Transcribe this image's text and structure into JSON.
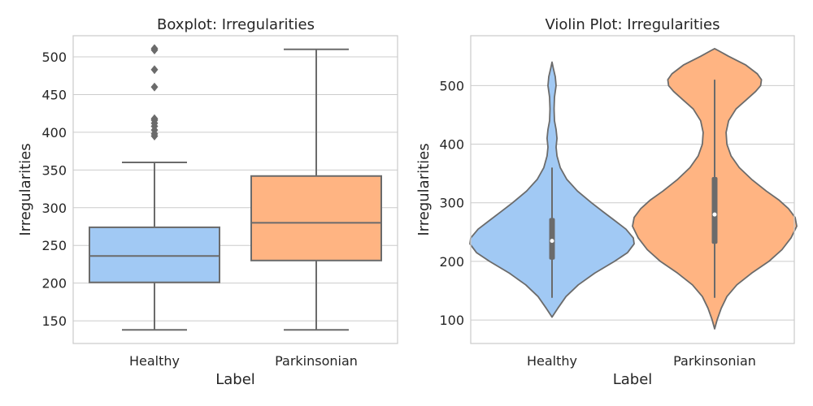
{
  "chart_data": [
    {
      "type": "box",
      "title": "Boxplot: Irregularities",
      "xlabel": "Label",
      "ylabel": "Irregularities",
      "categories": [
        "Healthy",
        "Parkinsonian"
      ],
      "ylim": [
        120,
        528
      ],
      "yticks": [
        150,
        200,
        250,
        300,
        350,
        400,
        450,
        500
      ],
      "grid": true,
      "colors": [
        "#a1c9f4",
        "#ffb482"
      ],
      "boxes": [
        {
          "category": "Healthy",
          "whisker_low": 138,
          "q1": 201,
          "median": 236,
          "q3": 274,
          "whisker_high": 360,
          "outliers": [
            395,
            398,
            403,
            408,
            412,
            416,
            418,
            460,
            483,
            509,
            511
          ]
        },
        {
          "category": "Parkinsonian",
          "whisker_low": 138,
          "q1": 230,
          "median": 280,
          "q3": 342,
          "whisker_high": 510,
          "outliers": []
        }
      ]
    },
    {
      "type": "violin",
      "title": "Violin Plot: Irregularities",
      "xlabel": "Label",
      "ylabel": "Irregularities",
      "categories": [
        "Healthy",
        "Parkinsonian"
      ],
      "ylim": [
        60,
        585
      ],
      "yticks": [
        100,
        200,
        300,
        400,
        500
      ],
      "grid": true,
      "colors": [
        "#a1c9f4",
        "#ffb482"
      ],
      "violins": [
        {
          "category": "Healthy",
          "min": 138,
          "max": 540,
          "q1": 203,
          "median": 235,
          "q3": 274,
          "whisker_high": 360,
          "density": [
            [
              105,
              0.0
            ],
            [
              120,
              0.07
            ],
            [
              140,
              0.17
            ],
            [
              160,
              0.32
            ],
            [
              180,
              0.52
            ],
            [
              200,
              0.76
            ],
            [
              215,
              0.92
            ],
            [
              230,
              1.0
            ],
            [
              240,
              0.99
            ],
            [
              255,
              0.9
            ],
            [
              270,
              0.76
            ],
            [
              285,
              0.62
            ],
            [
              300,
              0.48
            ],
            [
              320,
              0.31
            ],
            [
              340,
              0.18
            ],
            [
              360,
              0.1
            ],
            [
              380,
              0.06
            ],
            [
              395,
              0.05
            ],
            [
              410,
              0.06
            ],
            [
              425,
              0.05
            ],
            [
              440,
              0.03
            ],
            [
              460,
              0.025
            ],
            [
              480,
              0.03
            ],
            [
              500,
              0.05
            ],
            [
              515,
              0.04
            ],
            [
              530,
              0.015
            ],
            [
              540,
              0.0
            ]
          ]
        },
        {
          "category": "Parkinsonian",
          "min": 138,
          "max": 510,
          "q1": 230,
          "median": 280,
          "q3": 344,
          "whisker_high": 510,
          "density": [
            [
              85,
              0.0
            ],
            [
              100,
              0.03
            ],
            [
              120,
              0.08
            ],
            [
              140,
              0.15
            ],
            [
              160,
              0.27
            ],
            [
              180,
              0.45
            ],
            [
              200,
              0.66
            ],
            [
              220,
              0.82
            ],
            [
              240,
              0.93
            ],
            [
              260,
              1.0
            ],
            [
              275,
              0.98
            ],
            [
              290,
              0.9
            ],
            [
              305,
              0.78
            ],
            [
              320,
              0.63
            ],
            [
              340,
              0.45
            ],
            [
              360,
              0.3
            ],
            [
              380,
              0.2
            ],
            [
              400,
              0.15
            ],
            [
              420,
              0.14
            ],
            [
              440,
              0.17
            ],
            [
              460,
              0.26
            ],
            [
              475,
              0.38
            ],
            [
              490,
              0.5
            ],
            [
              500,
              0.56
            ],
            [
              510,
              0.57
            ],
            [
              520,
              0.52
            ],
            [
              535,
              0.38
            ],
            [
              550,
              0.17
            ],
            [
              560,
              0.04
            ],
            [
              563,
              0.0
            ]
          ]
        }
      ]
    }
  ]
}
